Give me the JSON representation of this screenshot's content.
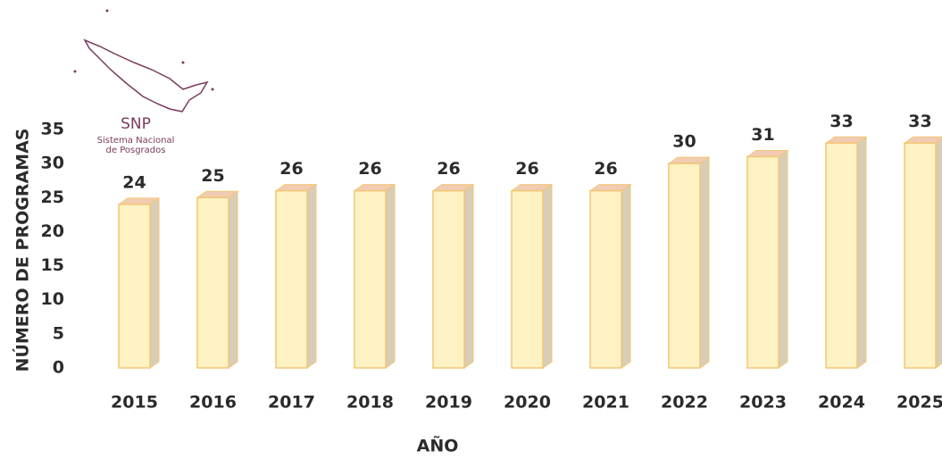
{
  "chart_data": {
    "type": "bar",
    "categories": [
      "2015",
      "2016",
      "2017",
      "2018",
      "2019",
      "2020",
      "2021",
      "2022",
      "2023",
      "2024",
      "2025"
    ],
    "values": [
      24,
      25,
      26,
      26,
      26,
      26,
      26,
      30,
      31,
      33,
      33
    ],
    "color": "#fdf2c4",
    "ylim": [
      0,
      35
    ],
    "yticks": [
      0,
      5,
      10,
      15,
      20,
      25,
      30,
      35
    ],
    "y_label": "NÚMERO DE PROGRAMAS",
    "x_label": "AÑO",
    "logo": {
      "title": "SNP",
      "subtitle": [
        "Sistema Nacional",
        "de Posgrados"
      ]
    }
  }
}
